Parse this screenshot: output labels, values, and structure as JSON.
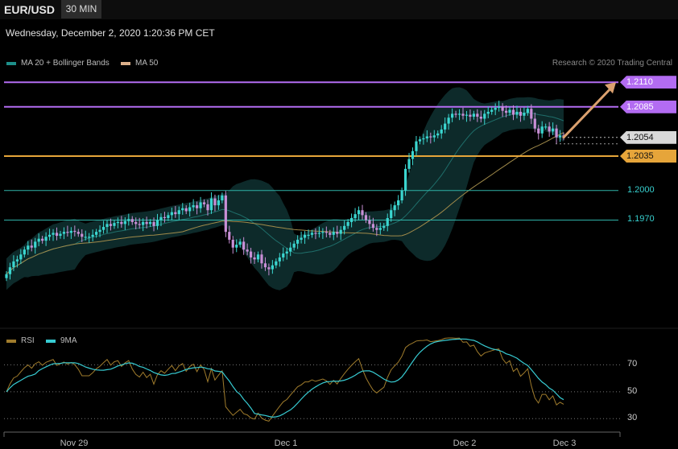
{
  "header": {
    "symbol": "EUR/USD",
    "timeframe": "30 MIN",
    "datetime": "Wednesday, December 2, 2020 1:20:36 PM CET"
  },
  "legend": {
    "bb_label": "MA 20 + Bollinger Bands",
    "ma50_label": "MA 50",
    "rsi_label": "RSI",
    "rsi_ma_label": "9MA"
  },
  "copyright": "Research © 2020 Trading Central",
  "colors": {
    "resistance": "#b36cf2",
    "support": "#e6a53a",
    "teal": "#2fb3a8",
    "bull": "#3bd6d0",
    "bear": "#c88fd6",
    "ma50": "#a08a4a",
    "band": "#0d2a2a",
    "rsi": "#a07c2c",
    "rsi_ma": "#37cbd2",
    "arrow": "#dba16f"
  },
  "chart_data": [
    {
      "type": "candlestick",
      "title": "EUR/USD 30 MIN",
      "x_labels": [
        "Nov 29",
        "Dec 1",
        "Dec 2",
        "Dec 3"
      ],
      "ylim": [
        1.186,
        1.212
      ],
      "levels": [
        {
          "value": 1.211,
          "label": "1.2110",
          "kind": "resistance"
        },
        {
          "value": 1.2085,
          "label": "1.2085",
          "kind": "resistance"
        },
        {
          "value": 1.2054,
          "label": "1.2054",
          "kind": "last_price"
        },
        {
          "value": 1.2035,
          "label": "1.2035",
          "kind": "support"
        },
        {
          "value": 1.2,
          "label": "1.2000",
          "kind": "pivot"
        },
        {
          "value": 1.197,
          "label": "1.1970",
          "kind": "pivot"
        }
      ],
      "close": [
        1.1915,
        1.1922,
        1.1928,
        1.193,
        1.1935,
        1.194,
        1.1944,
        1.1942,
        1.1948,
        1.1951,
        1.1949,
        1.1953,
        1.1955,
        1.1957,
        1.1954,
        1.1956,
        1.1958,
        1.1957,
        1.1959,
        1.1958,
        1.1956,
        1.1953,
        1.1953,
        1.1953,
        1.1955,
        1.1958,
        1.196,
        1.1963,
        1.1966,
        1.1964,
        1.1967,
        1.1968,
        1.1966,
        1.1969,
        1.1971,
        1.1968,
        1.1966,
        1.1965,
        1.1968,
        1.1966,
        1.1968,
        1.1964,
        1.197,
        1.1973,
        1.1972,
        1.1975,
        1.1978,
        1.1976,
        1.198,
        1.1982,
        1.1979,
        1.1983,
        1.1985,
        1.1982,
        1.1988,
        1.1986,
        1.198,
        1.1992,
        1.1985,
        1.199,
        1.1995,
        1.1958,
        1.195,
        1.1942,
        1.1945,
        1.1948,
        1.194,
        1.1938,
        1.1932,
        1.193,
        1.1935,
        1.1926,
        1.1922,
        1.192,
        1.1924,
        1.1928,
        1.1932,
        1.1936,
        1.1938,
        1.1942,
        1.1946,
        1.195,
        1.1952,
        1.1955,
        1.1955,
        1.1957,
        1.1956,
        1.1957,
        1.1958,
        1.1957,
        1.1955,
        1.1958,
        1.1956,
        1.196,
        1.1964,
        1.1968,
        1.1972,
        1.1976,
        1.198,
        1.1975,
        1.197,
        1.1966,
        1.1962,
        1.196,
        1.1962,
        1.1964,
        1.1972,
        1.198,
        1.1985,
        1.199,
        1.2,
        1.2022,
        1.2032,
        1.204,
        1.205,
        1.2052,
        1.2053,
        1.2055,
        1.2054,
        1.2056,
        1.2058,
        1.2062,
        1.2068,
        1.2074,
        1.2078,
        1.2077,
        1.2078,
        1.2076,
        1.2077,
        1.2075,
        1.2078,
        1.2075,
        1.2073,
        1.2078,
        1.208,
        1.2082,
        1.2084,
        1.2085,
        1.2081,
        1.2079,
        1.2082,
        1.2077,
        1.208,
        1.2076,
        1.2079,
        1.2083,
        1.2073,
        1.2063,
        1.2058,
        1.2065,
        1.2065,
        1.206,
        1.2063,
        1.2054,
        1.2056,
        1.2054
      ]
    },
    {
      "type": "line",
      "title": "RSI",
      "series": [
        {
          "name": "RSI"
        },
        {
          "name": "9MA"
        }
      ],
      "ylim": [
        20,
        90
      ],
      "yticks": [
        70,
        50,
        30
      ],
      "guides": [
        70,
        50,
        30
      ]
    }
  ]
}
